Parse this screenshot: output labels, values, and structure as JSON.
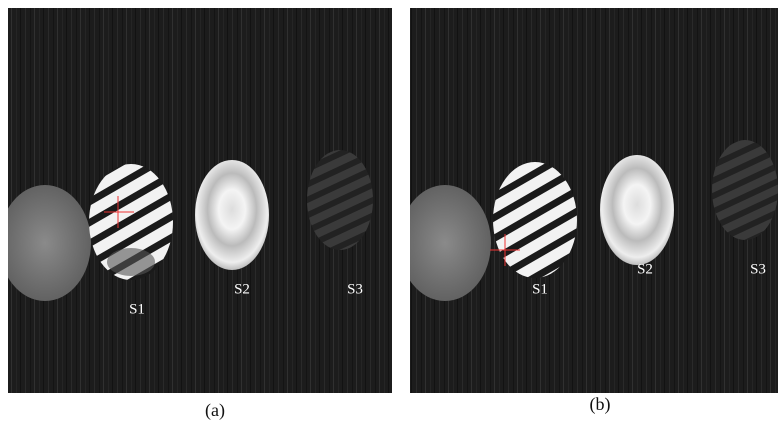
{
  "panels": [
    {
      "labels": [
        "S1",
        "S2",
        "S3"
      ],
      "caption": "(a)"
    },
    {
      "labels": [
        "S1",
        "S2",
        "S3"
      ],
      "caption": "(b)"
    }
  ]
}
